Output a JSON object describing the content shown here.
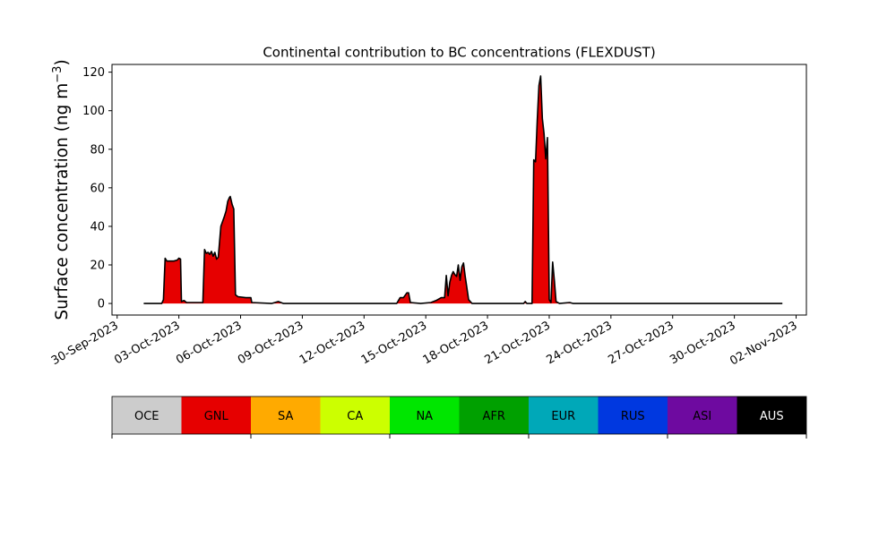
{
  "chart_data": {
    "type": "area",
    "title": "Continental contribution to BC concentrations (FLEXDUST)",
    "ylabel": "Surface concentration (ng m",
    "ylabel_sup": "−3",
    "ylabel_close": ")",
    "ylim": [
      -6,
      124
    ],
    "yticks": [
      0,
      20,
      40,
      60,
      80,
      100,
      120
    ],
    "xlim": [
      "2023-09-29T18:00",
      "2023-11-02T12:00"
    ],
    "xticks": [
      "2023-09-30",
      "2023-10-03",
      "2023-10-06",
      "2023-10-09",
      "2023-10-12",
      "2023-10-15",
      "2023-10-18",
      "2023-10-21",
      "2023-10-24",
      "2023-10-27",
      "2023-10-30",
      "2023-11-02"
    ],
    "xtick_labels": [
      "30-Sep-2023",
      "03-Oct-2023",
      "06-Oct-2023",
      "09-Oct-2023",
      "12-Oct-2023",
      "15-Oct-2023",
      "18-Oct-2023",
      "21-Oct-2023",
      "24-Oct-2023",
      "27-Oct-2023",
      "30-Oct-2023",
      "02-Nov-2023"
    ],
    "series": [
      {
        "name": "GNL",
        "color": "#e60000",
        "points": [
          [
            "2023-10-01T07:00",
            0
          ],
          [
            "2023-10-02T04:00",
            0
          ],
          [
            "2023-10-02T06:00",
            2
          ],
          [
            "2023-10-02T08:00",
            23.5
          ],
          [
            "2023-10-02T10:00",
            22
          ],
          [
            "2023-10-02T16:00",
            22
          ],
          [
            "2023-10-02T18:00",
            22
          ],
          [
            "2023-10-02T22:00",
            22.5
          ],
          [
            "2023-10-03T00:00",
            23.5
          ],
          [
            "2023-10-03T02:00",
            23
          ],
          [
            "2023-10-03T03:00",
            1
          ],
          [
            "2023-10-03T06:00",
            1.5
          ],
          [
            "2023-10-03T09:00",
            0.5
          ],
          [
            "2023-10-04T04:00",
            0.5
          ],
          [
            "2023-10-04T06:00",
            28
          ],
          [
            "2023-10-04T08:00",
            26
          ],
          [
            "2023-10-04T10:00",
            26.5
          ],
          [
            "2023-10-04T12:00",
            25.5
          ],
          [
            "2023-10-04T14:00",
            27
          ],
          [
            "2023-10-04T16:00",
            24.5
          ],
          [
            "2023-10-04T18:00",
            26.5
          ],
          [
            "2023-10-04T20:00",
            23
          ],
          [
            "2023-10-04T22:00",
            24
          ],
          [
            "2023-10-05T01:00",
            40
          ],
          [
            "2023-10-05T03:00",
            42.5
          ],
          [
            "2023-10-05T05:00",
            45
          ],
          [
            "2023-10-05T07:00",
            48
          ],
          [
            "2023-10-05T09:00",
            53
          ],
          [
            "2023-10-05T11:00",
            55
          ],
          [
            "2023-10-05T12:00",
            55.5
          ],
          [
            "2023-10-05T14:00",
            51.5
          ],
          [
            "2023-10-05T16:00",
            49
          ],
          [
            "2023-10-05T18:00",
            4.5
          ],
          [
            "2023-10-05T21:00",
            3.5
          ],
          [
            "2023-10-06T06:00",
            3
          ],
          [
            "2023-10-06T12:00",
            3
          ],
          [
            "2023-10-06T13:00",
            0.5
          ],
          [
            "2023-10-07T12:00",
            0
          ],
          [
            "2023-10-07T20:00",
            1
          ],
          [
            "2023-10-08T02:00",
            0
          ],
          [
            "2023-10-13T14:00",
            0
          ],
          [
            "2023-10-13T18:00",
            3
          ],
          [
            "2023-10-13T22:00",
            3
          ],
          [
            "2023-10-14T02:00",
            5.5
          ],
          [
            "2023-10-14T04:00",
            5.5
          ],
          [
            "2023-10-14T06:00",
            0.5
          ],
          [
            "2023-10-14T18:00",
            0
          ],
          [
            "2023-10-15T06:00",
            0.5
          ],
          [
            "2023-10-15T12:00",
            1.5
          ],
          [
            "2023-10-15T18:00",
            3
          ],
          [
            "2023-10-15T22:00",
            3
          ],
          [
            "2023-10-16T00:00",
            14.5
          ],
          [
            "2023-10-16T02:00",
            4
          ],
          [
            "2023-10-16T04:00",
            11
          ],
          [
            "2023-10-16T06:00",
            14.5
          ],
          [
            "2023-10-16T08:00",
            16.5
          ],
          [
            "2023-10-16T10:00",
            15
          ],
          [
            "2023-10-16T12:00",
            14
          ],
          [
            "2023-10-16T14:00",
            20
          ],
          [
            "2023-10-16T16:00",
            12
          ],
          [
            "2023-10-16T18:00",
            19
          ],
          [
            "2023-10-16T20:00",
            21
          ],
          [
            "2023-10-16T22:00",
            14
          ],
          [
            "2023-10-17T00:00",
            8
          ],
          [
            "2023-10-17T02:00",
            2
          ],
          [
            "2023-10-17T06:00",
            0
          ],
          [
            "2023-10-19T18:00",
            0
          ],
          [
            "2023-10-19T20:00",
            1
          ],
          [
            "2023-10-19T22:00",
            0
          ],
          [
            "2023-10-20T04:00",
            0
          ],
          [
            "2023-10-20T06:00",
            74.5
          ],
          [
            "2023-10-20T08:00",
            73.5
          ],
          [
            "2023-10-20T10:00",
            95
          ],
          [
            "2023-10-20T12:00",
            113
          ],
          [
            "2023-10-20T14:00",
            118
          ],
          [
            "2023-10-20T16:00",
            96
          ],
          [
            "2023-10-20T18:00",
            88
          ],
          [
            "2023-10-20T20:00",
            75
          ],
          [
            "2023-10-20T22:00",
            86
          ],
          [
            "2023-10-21T00:00",
            2
          ],
          [
            "2023-10-21T02:00",
            0.5
          ],
          [
            "2023-10-21T04:00",
            21.5
          ],
          [
            "2023-10-21T06:00",
            12
          ],
          [
            "2023-10-21T08:00",
            1
          ],
          [
            "2023-10-21T12:00",
            0
          ],
          [
            "2023-10-22T00:00",
            0.5
          ],
          [
            "2023-10-22T04:00",
            0
          ],
          [
            "2023-11-01T08:00",
            0
          ]
        ]
      }
    ],
    "legend": [
      {
        "name": "OCE",
        "color": "#cccccc",
        "text": "#000000"
      },
      {
        "name": "GNL",
        "color": "#e60000",
        "text": "#000000"
      },
      {
        "name": "SA",
        "color": "#ffaa00",
        "text": "#000000"
      },
      {
        "name": "CA",
        "color": "#ccff00",
        "text": "#000000"
      },
      {
        "name": "NA",
        "color": "#00e600",
        "text": "#000000"
      },
      {
        "name": "AFR",
        "color": "#00a000",
        "text": "#000000"
      },
      {
        "name": "EUR",
        "color": "#00a8b8",
        "text": "#000000"
      },
      {
        "name": "RUS",
        "color": "#0038e0",
        "text": "#000000"
      },
      {
        "name": "ASI",
        "color": "#6e0aa0",
        "text": "#000000"
      },
      {
        "name": "AUS",
        "color": "#000000",
        "text": "#ffffff"
      }
    ]
  }
}
